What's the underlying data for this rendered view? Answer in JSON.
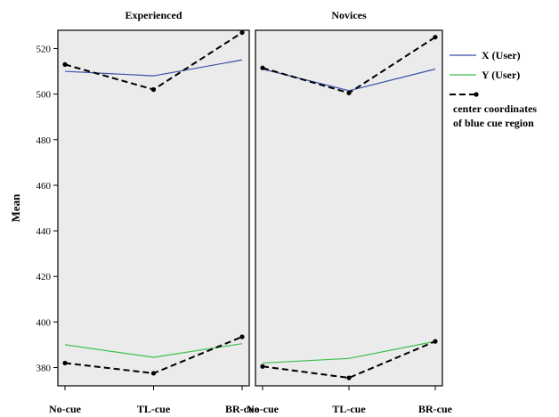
{
  "chart_data": {
    "type": "line",
    "ylabel": "Mean",
    "ylim": [
      372,
      528
    ],
    "yticks": [
      380,
      400,
      420,
      440,
      460,
      480,
      500,
      520
    ],
    "categories": [
      "No-cue",
      "TL-cue",
      "BR-cue"
    ],
    "legend": {
      "placement": "right",
      "entries": [
        {
          "label": "X (User)",
          "color": "#3a4fa8",
          "style": "solid"
        },
        {
          "label": "Y (User)",
          "color": "#3bbf4a",
          "style": "solid"
        },
        {
          "label_lines": [
            "center coordinates",
            "of blue cue region"
          ],
          "color": "#000000",
          "style": "dashed-dots"
        }
      ]
    },
    "panels": [
      {
        "title": "Experienced",
        "series": [
          {
            "name": "X (User)",
            "values": [
              510,
              508,
              515
            ],
            "color": "#3a4fa8",
            "style": "solid"
          },
          {
            "name": "Y (User)",
            "values": [
              390,
              384.5,
              390.5
            ],
            "color": "#3bbf4a",
            "style": "solid"
          },
          {
            "name": "center coordinates of blue cue region",
            "values": [
              382,
              377.5,
              393.5
            ],
            "color": "#000000",
            "style": "dashed-dots"
          },
          {
            "name": "center coordinates of blue cue region",
            "values": [
              513,
              502,
              527
            ],
            "color": "#000000",
            "style": "dashed-dots"
          }
        ]
      },
      {
        "title": "Novices",
        "series": [
          {
            "name": "X (User)",
            "values": [
              511,
              501.5,
              511
            ],
            "color": "#3a4fa8",
            "style": "solid"
          },
          {
            "name": "Y (User)",
            "values": [
              382,
              384,
              391.5
            ],
            "color": "#3bbf4a",
            "style": "solid"
          },
          {
            "name": "center coordinates of blue cue region",
            "values": [
              380.5,
              375.5,
              391.5
            ],
            "color": "#000000",
            "style": "dashed-dots"
          },
          {
            "name": "center coordinates of blue cue region",
            "values": [
              511.5,
              500.5,
              525
            ],
            "color": "#000000",
            "style": "dashed-dots"
          }
        ]
      }
    ]
  }
}
